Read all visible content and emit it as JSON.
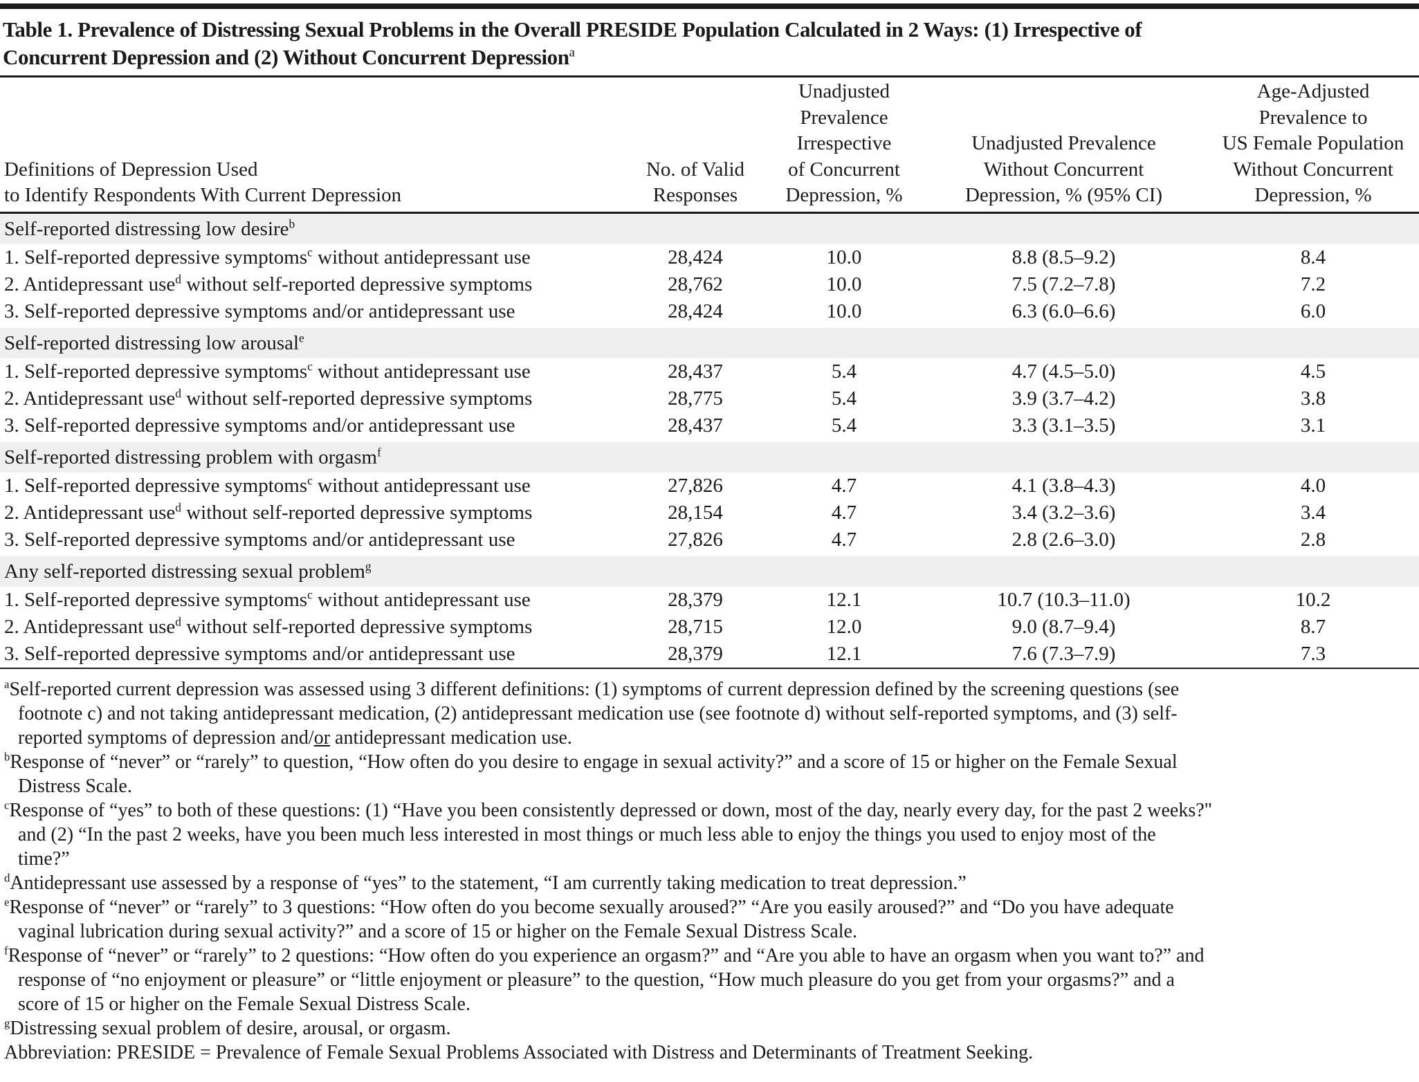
{
  "title": {
    "line1": "Table 1. Prevalence of Distressing Sexual Problems in the Overall PRESIDE Population Calculated in 2 Ways: (1) Irrespective of",
    "line2": "Concurrent Depression and (2) Without Concurrent Depression",
    "sup": "a"
  },
  "headers": {
    "col1": [
      "Definitions of Depression Used",
      "to Identify Respondents With Current Depression"
    ],
    "col2": [
      "No. of Valid",
      "Responses"
    ],
    "col3": [
      "Unadjusted",
      "Prevalence",
      "Irrespective",
      "of Concurrent",
      "Depression, %"
    ],
    "col4": [
      "Unadjusted Prevalence",
      "Without Concurrent",
      "Depression, % (95% CI)"
    ],
    "col5": [
      "Age-Adjusted",
      "Prevalence to",
      "US Female Population",
      "Without Concurrent",
      "Depression, %"
    ]
  },
  "sections": [
    {
      "label": "Self-reported distressing low desire",
      "sup": "b",
      "rows": [
        {
          "pre": "1. Self-reported depressive symptoms",
          "sup": "c",
          "post": " without antidepressant use",
          "n": "28,424",
          "irr": "10.0",
          "wo": "8.8 (8.5–9.2)",
          "age": "8.4"
        },
        {
          "pre": "2. Antidepressant use",
          "sup": "d",
          "post": " without self-reported depressive symptoms",
          "n": "28,762",
          "irr": "10.0",
          "wo": "7.5 (7.2–7.8)",
          "age": "7.2"
        },
        {
          "pre": "3. Self-reported depressive symptoms and/or antidepressant use",
          "sup": "",
          "post": "",
          "n": "28,424",
          "irr": "10.0",
          "wo": "6.3 (6.0–6.6)",
          "age": "6.0"
        }
      ]
    },
    {
      "label": "Self-reported distressing low arousal",
      "sup": "e",
      "rows": [
        {
          "pre": "1. Self-reported depressive symptoms",
          "sup": "c",
          "post": " without antidepressant use",
          "n": "28,437",
          "irr": "5.4",
          "wo": "4.7 (4.5–5.0)",
          "age": "4.5"
        },
        {
          "pre": "2. Antidepressant use",
          "sup": "d",
          "post": " without self-reported depressive symptoms",
          "n": "28,775",
          "irr": "5.4",
          "wo": "3.9 (3.7–4.2)",
          "age": "3.8"
        },
        {
          "pre": "3. Self-reported depressive symptoms and/or antidepressant use",
          "sup": "",
          "post": "",
          "n": "28,437",
          "irr": "5.4",
          "wo": "3.3 (3.1–3.5)",
          "age": "3.1"
        }
      ]
    },
    {
      "label": "Self-reported distressing problem with orgasm",
      "sup": "f",
      "rows": [
        {
          "pre": "1. Self-reported depressive symptoms",
          "sup": "c",
          "post": " without antidepressant use",
          "n": "27,826",
          "irr": "4.7",
          "wo": "4.1 (3.8–4.3)",
          "age": "4.0"
        },
        {
          "pre": "2. Antidepressant use",
          "sup": "d",
          "post": " without self-reported depressive symptoms",
          "n": "28,154",
          "irr": "4.7",
          "wo": "3.4 (3.2–3.6)",
          "age": "3.4"
        },
        {
          "pre": "3. Self-reported depressive symptoms and/or antidepressant use",
          "sup": "",
          "post": "",
          "n": "27,826",
          "irr": "4.7",
          "wo": "2.8 (2.6–3.0)",
          "age": "2.8"
        }
      ]
    },
    {
      "label": "Any self-reported distressing sexual problem",
      "sup": "g",
      "rows": [
        {
          "pre": "1. Self-reported depressive symptoms",
          "sup": "c",
          "post": " without antidepressant use",
          "n": "28,379",
          "irr": "12.1",
          "wo": "10.7 (10.3–11.0)",
          "age": "10.2"
        },
        {
          "pre": "2. Antidepressant use",
          "sup": "d",
          "post": " without self-reported depressive symptoms",
          "n": "28,715",
          "irr": "12.0",
          "wo": "9.0 (8.7–9.4)",
          "age": "8.7"
        },
        {
          "pre": "3. Self-reported depressive symptoms and/or antidepressant use",
          "sup": "",
          "post": "",
          "n": "28,379",
          "irr": "12.1",
          "wo": "7.6 (7.3–7.9)",
          "age": "7.3"
        }
      ]
    }
  ],
  "footnotes": [
    {
      "mark": "a",
      "lines": [
        "Self-reported current depression was assessed using 3 different definitions: (1) symptoms of current depression defined by the screening questions (see",
        "footnote c) and not taking antidepressant medication, (2) antidepressant medication use (see footnote d) without self-reported symptoms, and (3) self-",
        "reported symptoms of depression and/"
      ],
      "underlined": "or",
      "tail": " antidepressant medication use."
    },
    {
      "mark": "b",
      "lines": [
        "Response of “never” or “rarely” to question, “How often do you desire to engage in sexual activity?” and a score of 15 or higher on the Female Sexual",
        "Distress Scale."
      ]
    },
    {
      "mark": "c",
      "lines": [
        "Response of “yes” to both of these questions: (1) “Have you been consistently depressed or down, most of the day, nearly every day, for the past 2 weeks?\"",
        "and (2) “In the past 2 weeks, have you been much less interested in most things or much less able to enjoy the things you used to enjoy most of the",
        "time?”"
      ]
    },
    {
      "mark": "d",
      "lines": [
        "Antidepressant use assessed by a response of “yes” to the statement, “I am currently taking medication to treat depression.”"
      ]
    },
    {
      "mark": "e",
      "lines": [
        "Response of “never” or “rarely” to 3 questions: “How often do you become sexually aroused?” “Are you easily aroused?” and “Do you have adequate",
        "vaginal lubrication during sexual activity?” and a score of 15 or higher on the Female Sexual Distress Scale."
      ]
    },
    {
      "mark": "f",
      "lines": [
        "Response of “never” or “rarely” to 2 questions: “How often do you experience an orgasm?” and “Are you able to have an orgasm when you want to?” and",
        "response of “no enjoyment or pleasure” or “little enjoyment or pleasure” to the question, “How much pleasure do you get from your orgasms?” and a",
        "score of 15 or higher on the Female Sexual Distress Scale."
      ]
    },
    {
      "mark": "g",
      "lines": [
        "Distressing sexual problem of desire, arousal, or orgasm."
      ]
    }
  ],
  "abbreviation": "Abbreviation: PRESIDE = Prevalence of Female Sexual Problems Associated with Distress and Determinants of Treatment Seeking.",
  "colors": {
    "text": "#1a1a1a",
    "section_shade": "#efefef"
  }
}
